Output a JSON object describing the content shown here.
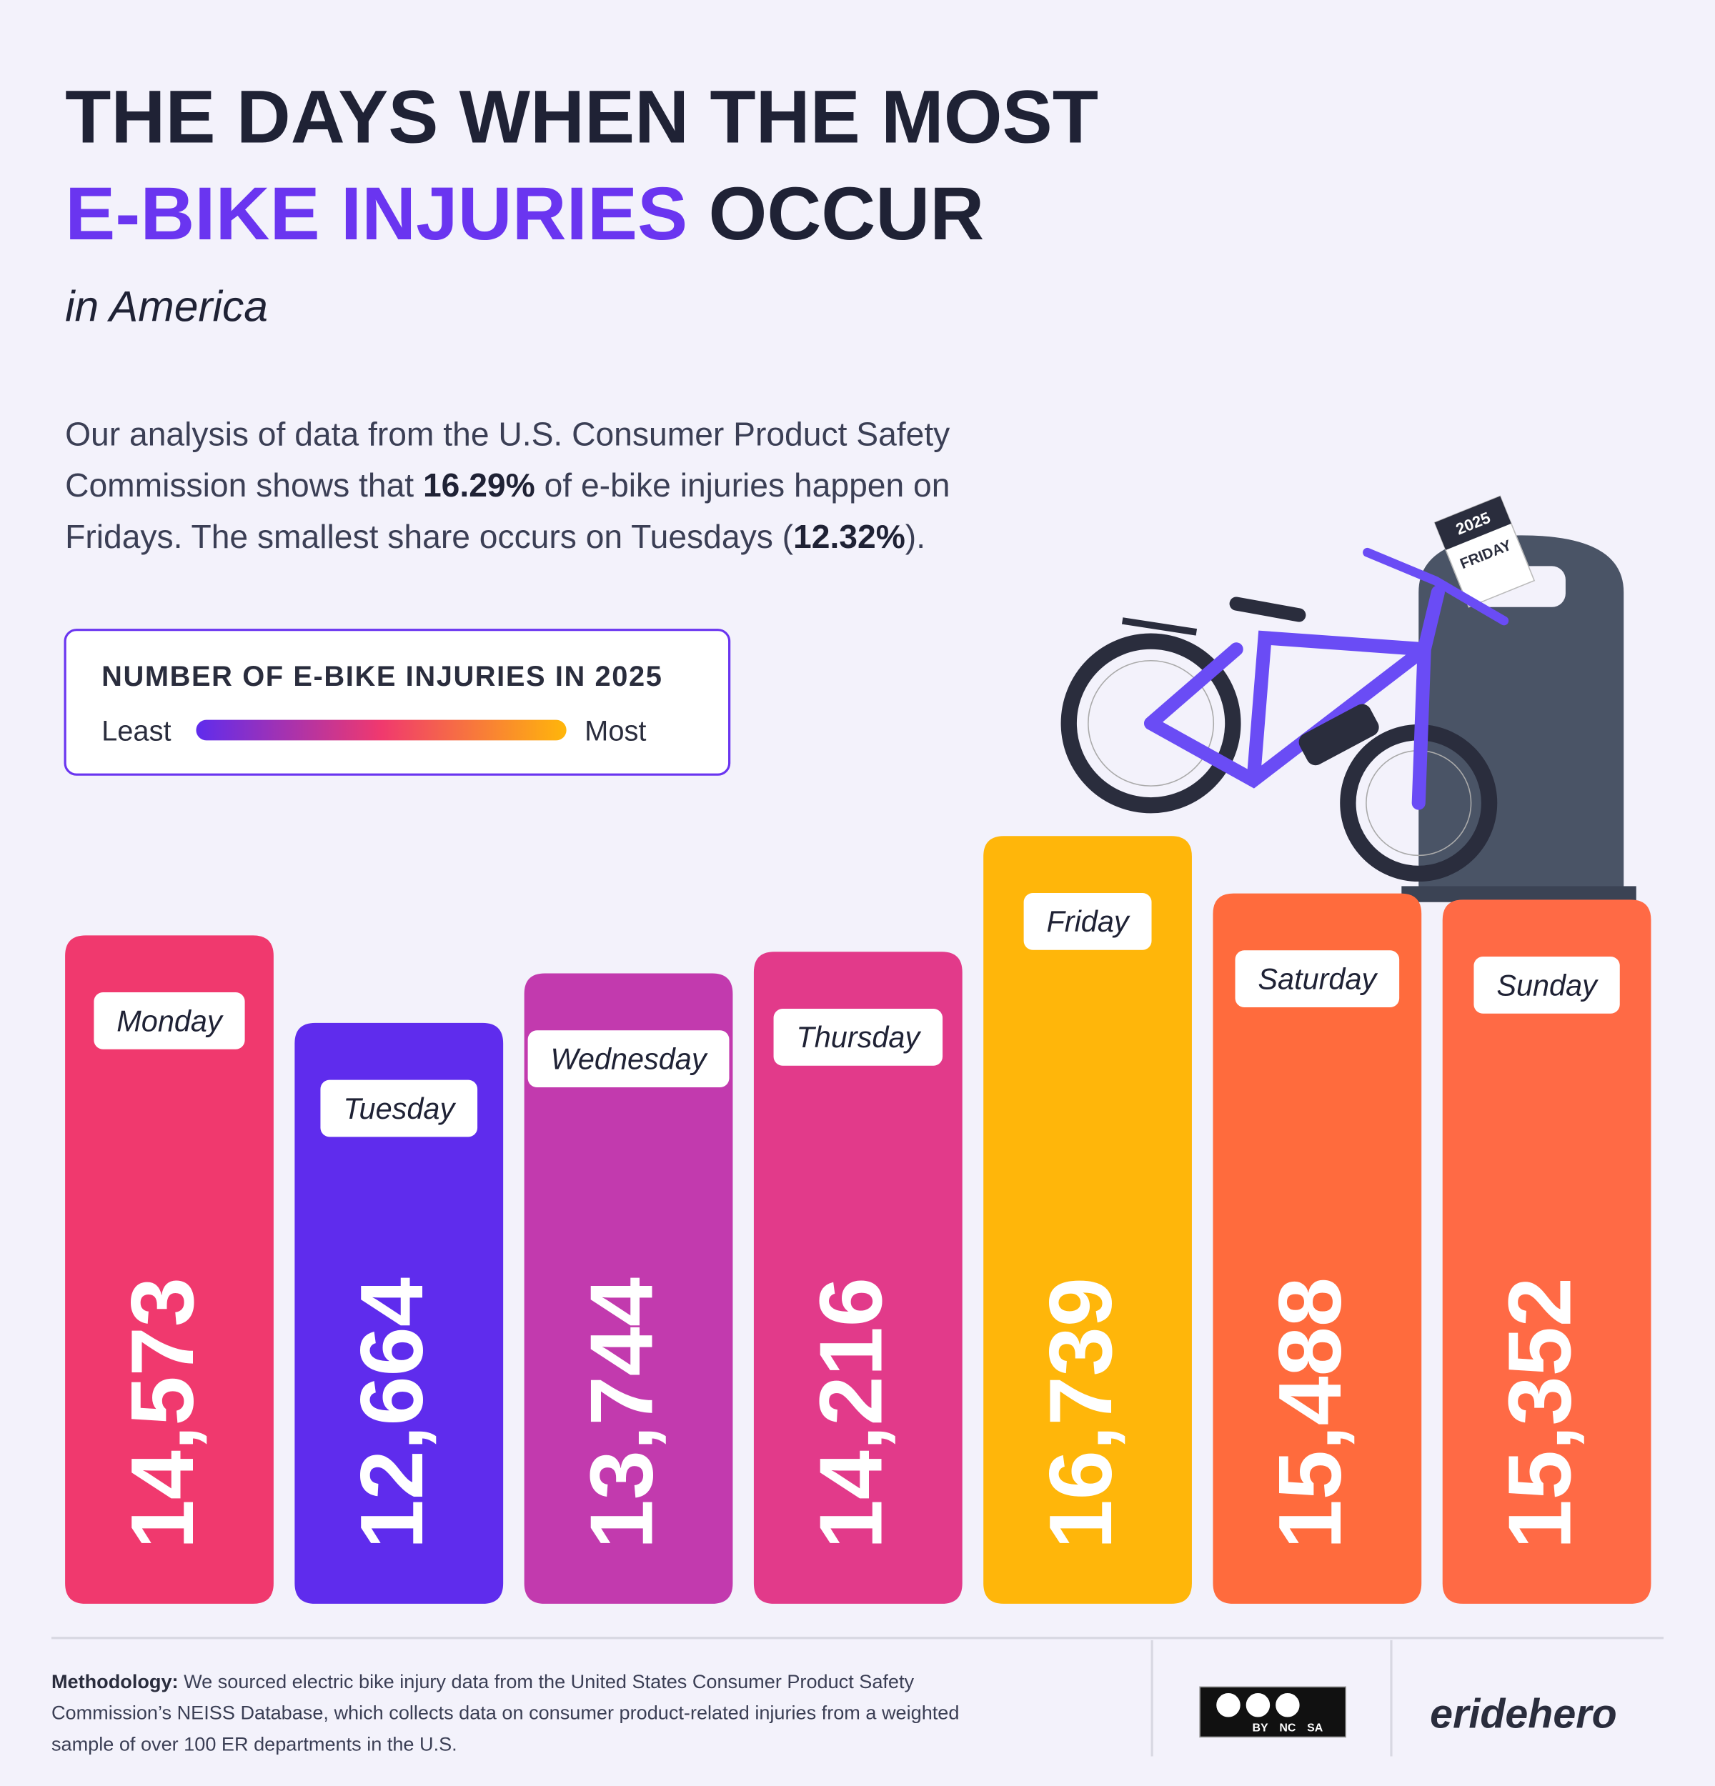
{
  "chart_data": {
    "type": "bar",
    "title": {
      "line1": "THE DAYS WHEN THE MOST",
      "highlight": "E-BIKE INJURIES",
      "rest": "OCCUR"
    },
    "subtitle": "in America",
    "description": [
      [
        {
          "text": "Our analysis of data from the U.S. Consumer Product Safety",
          "bold": false
        }
      ],
      [
        {
          "text": "Commission shows that ",
          "bold": false
        },
        {
          "text": "16.29%",
          "bold": true
        },
        {
          "text": " of e-bike injuries happen on",
          "bold": false
        }
      ],
      [
        {
          "text": "Fridays. The smallest share occurs on Tuesdays (",
          "bold": false
        },
        {
          "text": "12.32%",
          "bold": true
        },
        {
          "text": ").",
          "bold": false
        }
      ]
    ],
    "legend": {
      "title": "NUMBER OF E-BIKE INJURIES IN 2025",
      "low": "Least",
      "high": "Most",
      "colors": [
        "#5f2ced",
        "#f0396e",
        "#ffb60a"
      ]
    },
    "categories": [
      "Monday",
      "Tuesday",
      "Wednesday",
      "Thursday",
      "Friday",
      "Saturday",
      "Sunday"
    ],
    "values": [
      14573,
      12664,
      13744,
      14216,
      16739,
      15488,
      15352
    ],
    "value_labels": [
      "14,573",
      "12,664",
      "13,744",
      "14,216",
      "16,739",
      "15,488",
      "15,352"
    ],
    "colors": [
      "#f0396e",
      "#5f2ced",
      "#c23aae",
      "#e23a8a",
      "#ffb60a",
      "#ff6b3d",
      "#ff6a45"
    ],
    "illustration": {
      "year": "2025",
      "day": "FRIDAY"
    },
    "footer": {
      "label": "Methodology:",
      "lines": [
        "We sourced electric bike injury data from the United States Consumer Product Safety",
        "Commission’s NEISS Database, which collects data on consumer product-related injuries from a weighted",
        "sample of over 100 ER departments in the U.S."
      ],
      "license": [
        "BY",
        "NC",
        "SA"
      ],
      "brand": "eridehero"
    }
  }
}
